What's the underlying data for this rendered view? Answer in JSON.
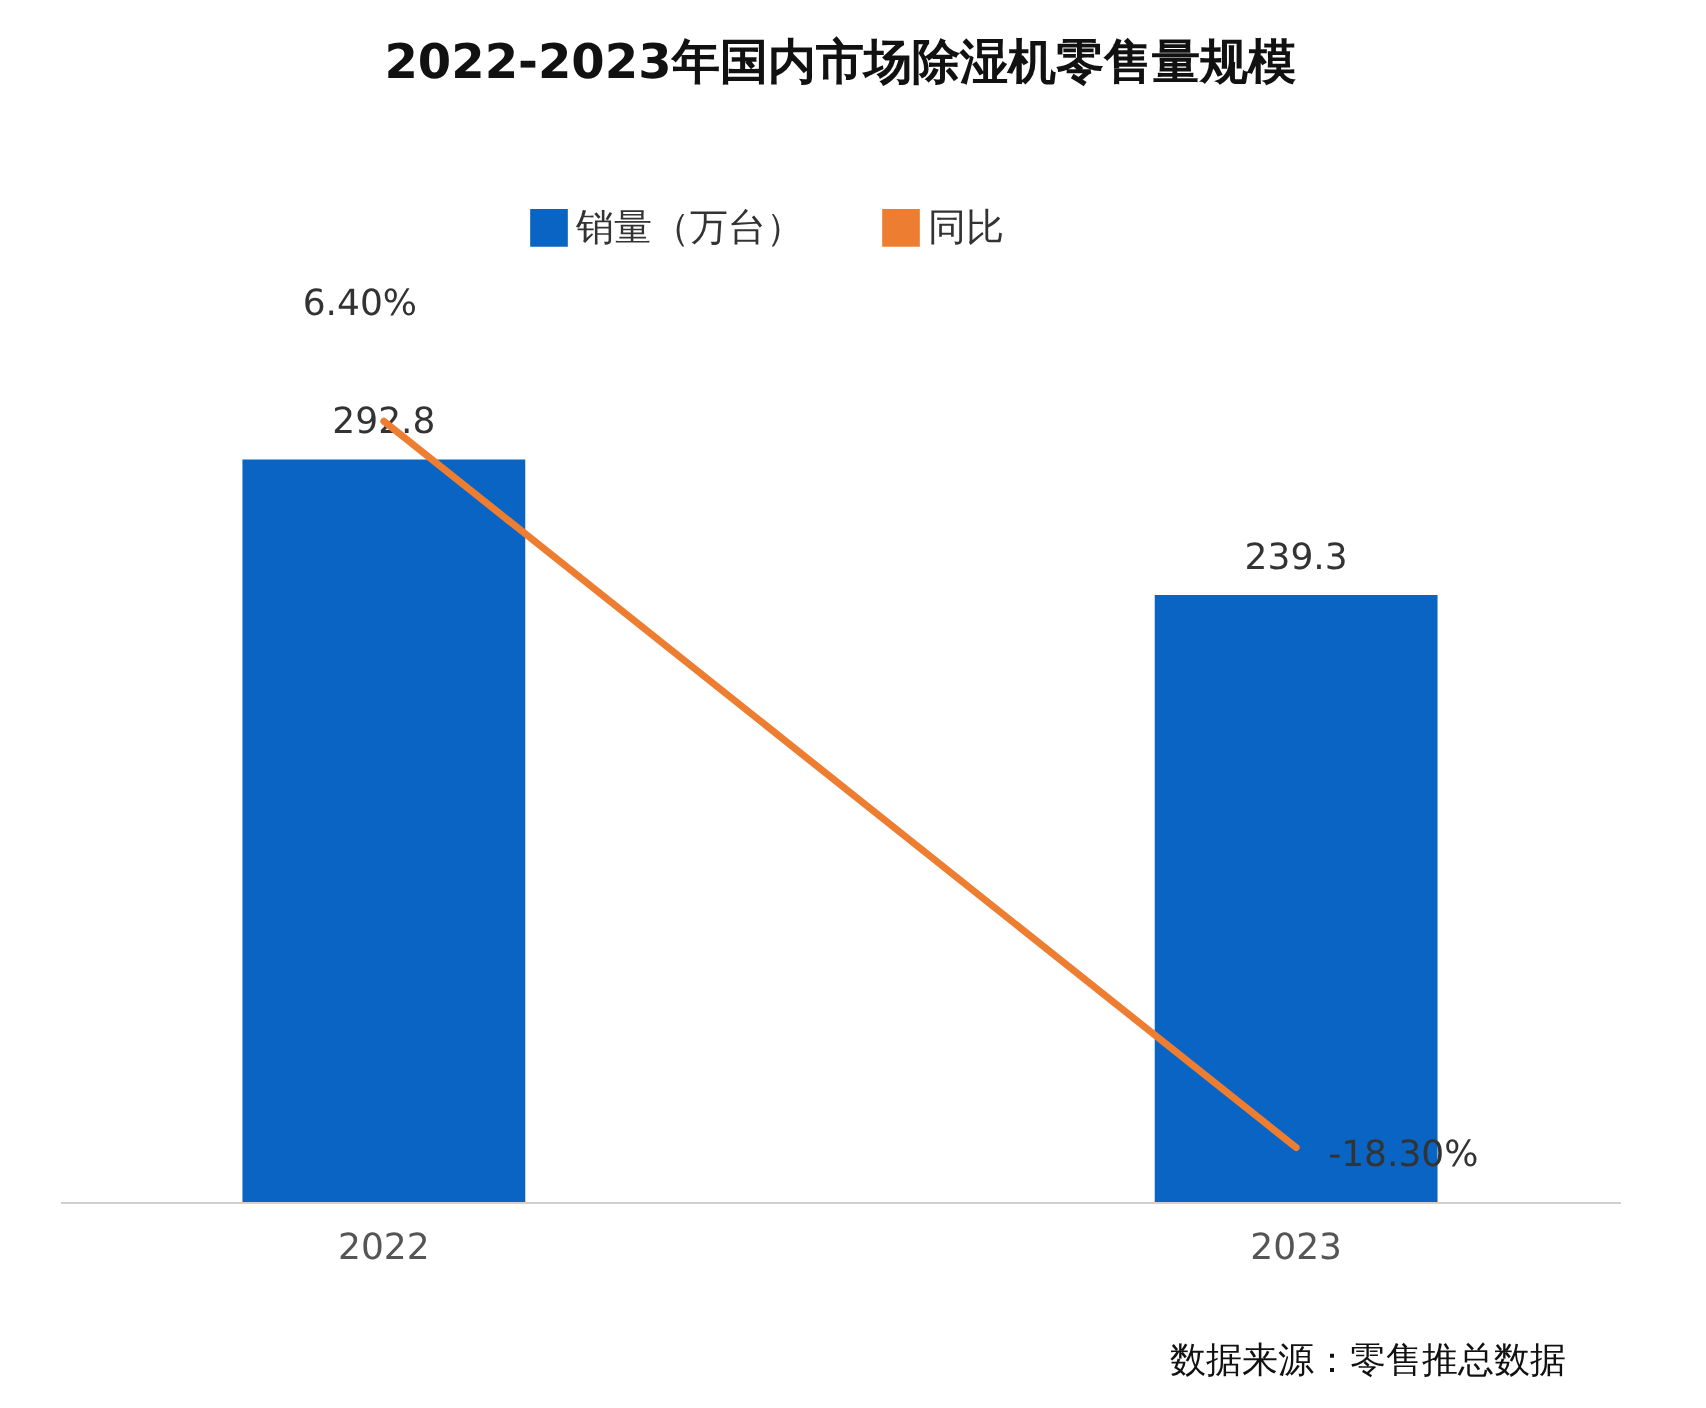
{
  "chart_data": {
    "type": "bar",
    "title": "2022-2023年国内市场除湿机零售量规模",
    "categories": [
      "2022",
      "2023"
    ],
    "series": [
      {
        "name": "销量（万台）",
        "color": "#0a64c3",
        "values": [
          292.8,
          239.3
        ],
        "value_labels": [
          "292.8",
          "239.3"
        ]
      },
      {
        "name": "同比",
        "type": "line",
        "axis": "y2",
        "color": "#ed7d31",
        "values": [
          6.4,
          -18.3
        ],
        "value_labels": [
          "6.40%",
          "-18.30%"
        ]
      }
    ],
    "tick_labels": "x",
    "legend": "top",
    "grid": false,
    "annotations": [
      "数据来源：零售推总数据"
    ]
  }
}
